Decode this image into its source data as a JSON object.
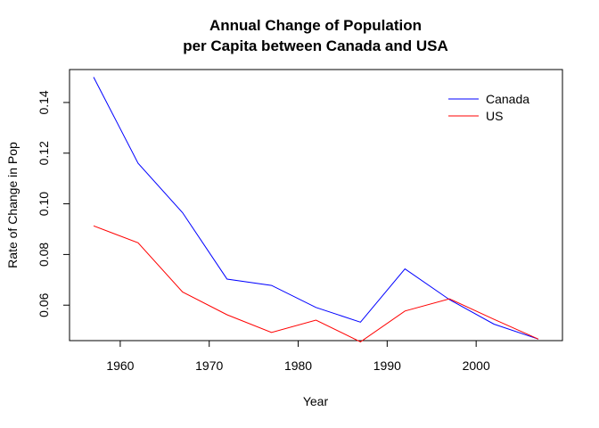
{
  "chart_data": {
    "type": "line",
    "title": [
      "Annual Change of Population",
      "per Capita between Canada and USA"
    ],
    "xlabel": "Year",
    "ylabel": "Rate of Change in Pop",
    "xlim": [
      1954.3,
      2009.7
    ],
    "ylim": [
      0.046,
      0.153
    ],
    "x_ticks": [
      1960,
      1970,
      1980,
      1990,
      2000
    ],
    "y_ticks": [
      0.06,
      0.08,
      0.1,
      0.12,
      0.14
    ],
    "y_tick_labels": [
      "0.06",
      "0.08",
      "0.10",
      "0.12",
      "0.14"
    ],
    "x": [
      1957,
      1962,
      1967,
      1972,
      1977,
      1982,
      1987,
      1992,
      1997,
      2002,
      2007
    ],
    "series": [
      {
        "name": "Canada",
        "color": "#0000ff",
        "values": [
          0.15,
          0.116,
          0.0965,
          0.0703,
          0.0678,
          0.0591,
          0.0533,
          0.0743,
          0.0622,
          0.0525,
          0.0466
        ]
      },
      {
        "name": "US",
        "color": "#ff0000",
        "values": [
          0.0913,
          0.0846,
          0.0652,
          0.0562,
          0.0492,
          0.0541,
          0.0455,
          0.0577,
          0.0625,
          0.0544,
          0.0466
        ]
      }
    ],
    "grid": false,
    "legend_position": "top-right"
  }
}
